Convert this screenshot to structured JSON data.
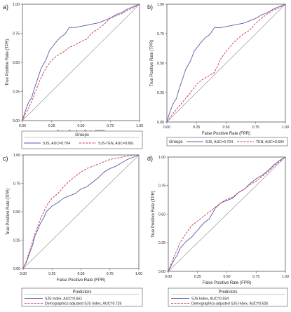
{
  "panels": [
    {
      "label": "a)",
      "xlabel": "False Positive Rate (FPR)",
      "ylabel": "True Positive Rate (TPR)",
      "ticks": [
        "0.00",
        "0.25",
        "0.50",
        "0.75",
        "1.00"
      ],
      "legend_title": "Groups",
      "legend_entries": [
        "SJS, AUC=0.704",
        "SJS-TEN, AUC=0.661"
      ]
    },
    {
      "label": "b)",
      "xlabel": "False Positive Rate (FPR)",
      "ylabel": "True Positive Rate (TPR)",
      "ticks": [
        "0.00",
        "0.25",
        "0.50",
        "0.75",
        "1.00"
      ],
      "legend_title": "Groups",
      "legend_entries": [
        "SJS, AUC=0.704",
        "TEN, AUC=0.594"
      ]
    },
    {
      "label": "c)",
      "xlabel": "False Positive Rate (FPR)",
      "ylabel": "True Positive Rate (TPR)",
      "ticks": [
        "0.00",
        "0.25",
        "0.50",
        "0.75",
        "1.00"
      ],
      "legend_title": "Predictors",
      "legend_entries": [
        "SJS Index, AUC=0.661",
        "Demographics-adjusted SJS Index, AUC=0.726"
      ]
    },
    {
      "label": "d)",
      "xlabel": "False Positive Rate (FPR)",
      "ylabel": "True Positive Rate (TPR)",
      "ticks": [
        "0.00",
        "0.25",
        "0.50",
        "0.75",
        "1.00"
      ],
      "legend_title": "Predictors",
      "legend_entries": [
        "SJS Index, AUC=0.594",
        "Demographics-adjusted SJS Index, AUC=0.626"
      ]
    }
  ],
  "colors": {
    "solid_series": "#5a5aa8",
    "dashed_series": "#c8325a",
    "reference": "#9a9a9a"
  },
  "chart_data": [
    {
      "type": "line",
      "title": "a)",
      "xlabel": "False Positive Rate (FPR)",
      "ylabel": "True Positive Rate (TPR)",
      "xlim": [
        0,
        1
      ],
      "ylim": [
        0,
        1
      ],
      "legend_title": "Groups",
      "legend_position": "bottom",
      "grid": false,
      "series": [
        {
          "name": "SJS, AUC=0.704",
          "style": "solid",
          "x": [
            0,
            0.02,
            0.05,
            0.08,
            0.1,
            0.13,
            0.16,
            0.2,
            0.23,
            0.26,
            0.3,
            0.33,
            0.36,
            0.4,
            0.45,
            0.5,
            0.55,
            0.6,
            0.65,
            0.7,
            0.75,
            0.8,
            0.85,
            0.9,
            0.95,
            1.0
          ],
          "y": [
            0,
            0.07,
            0.15,
            0.2,
            0.27,
            0.36,
            0.45,
            0.52,
            0.6,
            0.64,
            0.69,
            0.72,
            0.74,
            0.8,
            0.8,
            0.81,
            0.82,
            0.83,
            0.84,
            0.86,
            0.88,
            0.91,
            0.93,
            0.96,
            0.98,
            1.0
          ]
        },
        {
          "name": "SJS-TEN, AUC=0.661",
          "style": "dashed",
          "x": [
            0,
            0.02,
            0.05,
            0.08,
            0.12,
            0.15,
            0.2,
            0.25,
            0.3,
            0.35,
            0.4,
            0.45,
            0.5,
            0.55,
            0.6,
            0.65,
            0.7,
            0.75,
            0.8,
            0.85,
            0.9,
            0.95,
            1.0
          ],
          "y": [
            0,
            0.05,
            0.1,
            0.17,
            0.27,
            0.35,
            0.45,
            0.52,
            0.56,
            0.59,
            0.63,
            0.65,
            0.68,
            0.7,
            0.76,
            0.79,
            0.83,
            0.88,
            0.9,
            0.92,
            0.95,
            0.97,
            1.0
          ]
        },
        {
          "name": "",
          "style": "reference",
          "x": [
            0,
            1
          ],
          "y": [
            0,
            1
          ]
        }
      ]
    },
    {
      "type": "line",
      "title": "b)",
      "xlabel": "False Positive Rate (FPR)",
      "ylabel": "True Positive Rate (TPR)",
      "xlim": [
        0,
        1
      ],
      "ylim": [
        0,
        1
      ],
      "legend_title": "Groups",
      "legend_position": "bottom",
      "grid": false,
      "series": [
        {
          "name": "SJS, AUC=0.704",
          "style": "solid",
          "x": [
            0,
            0.02,
            0.05,
            0.08,
            0.1,
            0.13,
            0.16,
            0.2,
            0.23,
            0.26,
            0.3,
            0.33,
            0.36,
            0.4,
            0.45,
            0.5,
            0.55,
            0.6,
            0.65,
            0.7,
            0.75,
            0.8,
            0.85,
            0.9,
            0.95,
            1.0
          ],
          "y": [
            0,
            0.07,
            0.15,
            0.2,
            0.27,
            0.36,
            0.45,
            0.52,
            0.6,
            0.64,
            0.69,
            0.72,
            0.74,
            0.8,
            0.8,
            0.81,
            0.82,
            0.83,
            0.84,
            0.86,
            0.88,
            0.91,
            0.93,
            0.96,
            0.98,
            1.0
          ]
        },
        {
          "name": "TEN, AUC=0.594",
          "style": "dashed",
          "x": [
            0,
            0.05,
            0.1,
            0.15,
            0.2,
            0.25,
            0.3,
            0.35,
            0.4,
            0.43,
            0.45,
            0.5,
            0.55,
            0.6,
            0.65,
            0.7,
            0.75,
            0.8,
            0.85,
            0.9,
            0.95,
            1.0
          ],
          "y": [
            0,
            0.07,
            0.13,
            0.19,
            0.25,
            0.32,
            0.36,
            0.39,
            0.42,
            0.48,
            0.53,
            0.6,
            0.66,
            0.71,
            0.75,
            0.78,
            0.84,
            0.88,
            0.92,
            0.95,
            0.97,
            1.0
          ]
        },
        {
          "name": "",
          "style": "reference",
          "x": [
            0,
            1
          ],
          "y": [
            0,
            1
          ]
        }
      ]
    },
    {
      "type": "line",
      "title": "c)",
      "xlabel": "False Positive Rate (FPR)",
      "ylabel": "True Positive Rate (TPR)",
      "xlim": [
        0,
        1
      ],
      "ylim": [
        0,
        1
      ],
      "legend_title": "Predictors",
      "legend_position": "bottom",
      "grid": false,
      "series": [
        {
          "name": "SJS Index, AUC=0.661",
          "style": "solid",
          "x": [
            0,
            0.03,
            0.05,
            0.08,
            0.1,
            0.13,
            0.15,
            0.18,
            0.2,
            0.25,
            0.3,
            0.35,
            0.4,
            0.45,
            0.5,
            0.55,
            0.6,
            0.65,
            0.7,
            0.75,
            0.8,
            0.85,
            0.9,
            0.95,
            1.0
          ],
          "y": [
            0,
            0.06,
            0.12,
            0.2,
            0.28,
            0.35,
            0.4,
            0.45,
            0.5,
            0.55,
            0.58,
            0.62,
            0.64,
            0.66,
            0.7,
            0.72,
            0.76,
            0.8,
            0.85,
            0.88,
            0.9,
            0.93,
            0.96,
            0.98,
            1.0
          ]
        },
        {
          "name": "Demographics-adjusted SJS Index, AUC=0.726",
          "style": "dashed",
          "x": [
            0,
            0.03,
            0.05,
            0.08,
            0.1,
            0.13,
            0.15,
            0.18,
            0.2,
            0.25,
            0.3,
            0.35,
            0.4,
            0.45,
            0.5,
            0.55,
            0.6,
            0.65,
            0.7,
            0.75,
            0.8,
            0.85,
            0.9,
            0.95,
            1.0
          ],
          "y": [
            0,
            0.07,
            0.14,
            0.23,
            0.3,
            0.38,
            0.44,
            0.5,
            0.55,
            0.62,
            0.66,
            0.72,
            0.77,
            0.81,
            0.85,
            0.88,
            0.9,
            0.92,
            0.94,
            0.96,
            0.97,
            0.98,
            0.99,
            1.0,
            1.0
          ]
        },
        {
          "name": "",
          "style": "reference",
          "x": [
            0,
            1
          ],
          "y": [
            0,
            1
          ]
        }
      ]
    },
    {
      "type": "line",
      "title": "d)",
      "xlabel": "False Positive Rate (FPR)",
      "ylabel": "True Positive Rate (TPR)",
      "xlim": [
        0,
        1
      ],
      "ylim": [
        0,
        1
      ],
      "legend_title": "Predictors",
      "legend_position": "bottom",
      "grid": false,
      "series": [
        {
          "name": "SJS Index, AUC=0.594",
          "style": "solid",
          "x": [
            0,
            0.03,
            0.05,
            0.08,
            0.1,
            0.15,
            0.2,
            0.25,
            0.3,
            0.35,
            0.4,
            0.45,
            0.5,
            0.55,
            0.6,
            0.65,
            0.7,
            0.75,
            0.8,
            0.85,
            0.9,
            0.95,
            1.0
          ],
          "y": [
            0,
            0.06,
            0.1,
            0.15,
            0.2,
            0.26,
            0.3,
            0.36,
            0.42,
            0.46,
            0.55,
            0.6,
            0.62,
            0.64,
            0.69,
            0.72,
            0.77,
            0.81,
            0.84,
            0.88,
            0.93,
            0.97,
            1.0
          ]
        },
        {
          "name": "Demographics-adjusted SJS Index, AUC=0.626",
          "style": "dashed",
          "x": [
            0,
            0.03,
            0.05,
            0.08,
            0.1,
            0.15,
            0.2,
            0.25,
            0.3,
            0.35,
            0.4,
            0.45,
            0.5,
            0.55,
            0.6,
            0.65,
            0.7,
            0.75,
            0.8,
            0.85,
            0.9,
            0.95,
            1.0
          ],
          "y": [
            0,
            0.08,
            0.13,
            0.2,
            0.25,
            0.33,
            0.4,
            0.44,
            0.48,
            0.52,
            0.56,
            0.6,
            0.63,
            0.65,
            0.69,
            0.72,
            0.76,
            0.79,
            0.83,
            0.87,
            0.92,
            0.96,
            1.0
          ]
        },
        {
          "name": "",
          "style": "reference",
          "x": [
            0,
            1
          ],
          "y": [
            0,
            1
          ]
        }
      ]
    }
  ]
}
